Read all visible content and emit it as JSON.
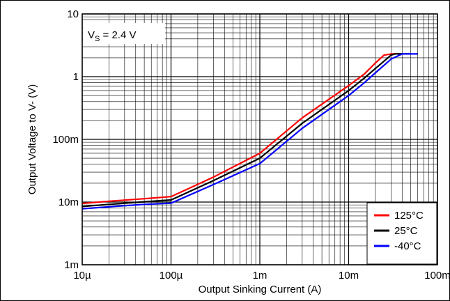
{
  "chart_data": {
    "type": "line",
    "title": "",
    "xlabel": "Output Sinking Current (A)",
    "ylabel": "Output Voltage to V- (V)",
    "x_scale": "log",
    "y_scale": "log",
    "xlim": [
      1e-05,
      0.1
    ],
    "ylim": [
      0.001,
      10
    ],
    "x_ticks": [
      {
        "value": 1e-05,
        "label": "10µ"
      },
      {
        "value": 0.0001,
        "label": "100µ"
      },
      {
        "value": 0.001,
        "label": "1m"
      },
      {
        "value": 0.01,
        "label": "10m"
      },
      {
        "value": 0.1,
        "label": "100m"
      }
    ],
    "y_ticks": [
      {
        "value": 0.001,
        "label": "1m"
      },
      {
        "value": 0.01,
        "label": "10m"
      },
      {
        "value": 0.1,
        "label": "100m"
      },
      {
        "value": 1,
        "label": "1"
      },
      {
        "value": 10,
        "label": "10"
      }
    ],
    "grid": true,
    "annotation": {
      "main": "V",
      "sub": "S",
      "rest": " = 2.4 V"
    },
    "legend_position": "bottom-right",
    "series": [
      {
        "name": "125°C",
        "color": "#ff0000",
        "x": [
          1e-05,
          2e-05,
          5e-05,
          0.0001,
          0.0003,
          0.001,
          0.003,
          0.01,
          0.015,
          0.02,
          0.025,
          0.03,
          0.04
        ],
        "y": [
          0.0095,
          0.0103,
          0.0113,
          0.0122,
          0.025,
          0.06,
          0.22,
          0.72,
          1.1,
          1.65,
          2.2,
          2.3,
          2.3
        ]
      },
      {
        "name": "25°C",
        "color": "#000000",
        "x": [
          1e-05,
          2e-05,
          5e-05,
          0.0001,
          0.0003,
          0.001,
          0.003,
          0.01,
          0.015,
          0.02,
          0.03,
          0.033,
          0.05
        ],
        "y": [
          0.0085,
          0.0092,
          0.0101,
          0.0108,
          0.022,
          0.05,
          0.18,
          0.6,
          0.95,
          1.35,
          2.2,
          2.3,
          2.3
        ]
      },
      {
        "name": "-40°C",
        "color": "#0000ff",
        "x": [
          1e-05,
          2e-05,
          5e-05,
          0.0001,
          0.0003,
          0.001,
          0.003,
          0.01,
          0.015,
          0.02,
          0.03,
          0.04,
          0.06
        ],
        "y": [
          0.0078,
          0.0084,
          0.0092,
          0.0096,
          0.019,
          0.041,
          0.15,
          0.5,
          0.8,
          1.15,
          1.9,
          2.3,
          2.3
        ]
      }
    ]
  }
}
